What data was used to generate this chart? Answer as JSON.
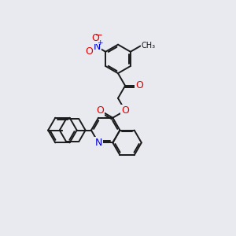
{
  "bg_color": "#e8eaf0",
  "bond_color": "#1a1a1a",
  "bond_width": 1.4,
  "atom_colors": {
    "O": "#dd0000",
    "N": "#0000cc",
    "C": "#1a1a1a"
  },
  "font_size": 8.5,
  "fig_size": [
    3.0,
    3.0
  ],
  "dpi": 100
}
